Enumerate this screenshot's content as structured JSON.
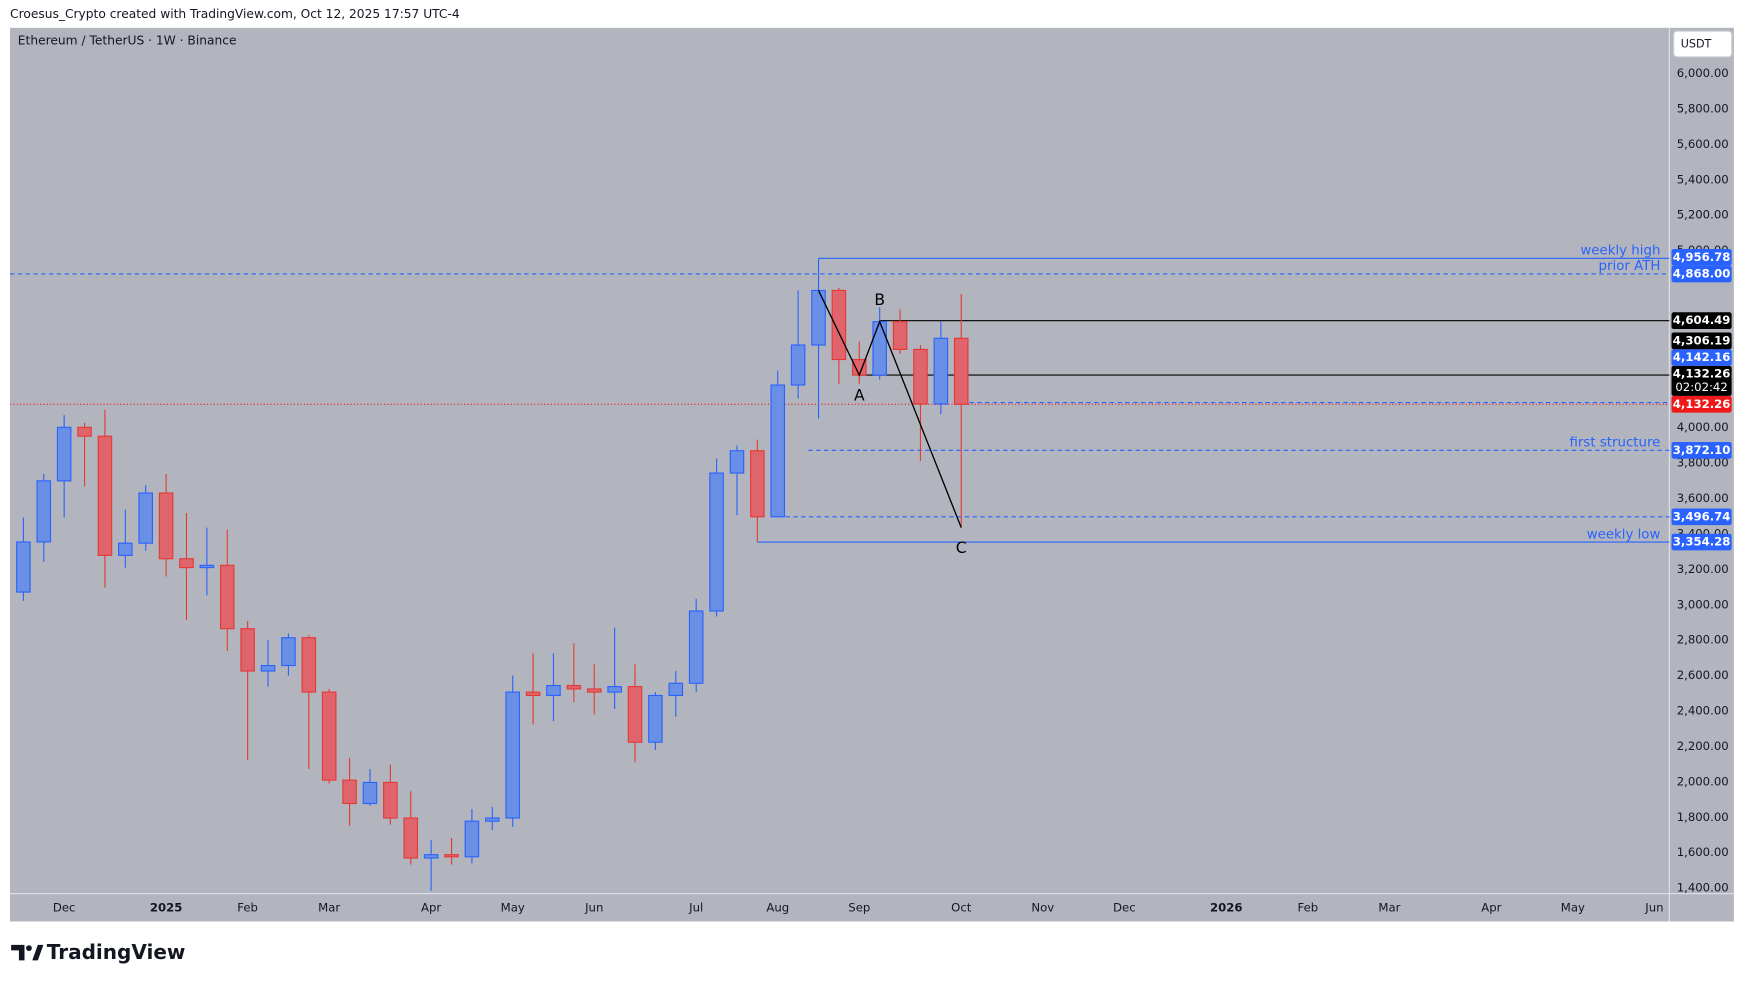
{
  "chart_data": {
    "type": "candlestick",
    "attribution": "Croesus_Crypto created with TradingView.com, Oct 12, 2025 17:57 UTC-4",
    "title": "Ethereum / TetherUS · 1W · Binance",
    "currency": "USDT",
    "brand": "TradingView",
    "up_color": "#2962ff",
    "down_color": "#e53935",
    "up_fill": "#6a8fe6",
    "down_fill": "#e0646c",
    "open": [
      3072,
      3355,
      3700,
      4002,
      3952,
      3279,
      3348,
      3631,
      3260,
      3210,
      3223,
      2865,
      2626,
      2657,
      2814,
      2507,
      2010,
      1878,
      1997,
      1796,
      1570,
      1589,
      1577,
      1778,
      1796,
      2507,
      2488,
      2544,
      2525,
      2507,
      2538,
      2224,
      2488,
      2557,
      2965,
      3744,
      3870,
      3497,
      4241,
      4467,
      4775,
      4385,
      4297,
      4599,
      4442,
      4134,
      4505
    ],
    "high": [
      3493,
      3738,
      4071,
      4027,
      4102,
      3537,
      3675,
      3738,
      3518,
      3436,
      3424,
      2909,
      2802,
      2839,
      2827,
      2525,
      2136,
      2073,
      2098,
      1947,
      1671,
      1683,
      1847,
      1859,
      2601,
      2726,
      2726,
      2783,
      2664,
      2871,
      2664,
      2507,
      2626,
      3034,
      3826,
      3900,
      3933,
      4322,
      4775,
      4956.78,
      4790,
      4486,
      4680,
      4668,
      4467,
      4599,
      4756
    ],
    "low": [
      3022,
      3242,
      3493,
      3669,
      3097,
      3210,
      3305,
      3160,
      2915,
      3053,
      2739,
      2123,
      2538,
      2600,
      2073,
      1991,
      1752,
      1865,
      1759,
      1533,
      1385,
      1533,
      1540,
      1727,
      1746,
      2324,
      2343,
      2450,
      2381,
      2412,
      2111,
      2180,
      2368,
      2507,
      2934,
      3506,
      3354.28,
      3497,
      4165,
      4052,
      4247,
      4247,
      4272,
      4417,
      3813,
      4077,
      3436
    ],
    "close": [
      3355,
      3700,
      4002,
      3952,
      3279,
      3348,
      3631,
      3260,
      3210,
      3223,
      2865,
      2626,
      2657,
      2814,
      2507,
      2010,
      1878,
      1997,
      1796,
      1570,
      1589,
      1577,
      1778,
      1796,
      2507,
      2488,
      2544,
      2525,
      2507,
      2538,
      2224,
      2488,
      2557,
      2965,
      3744,
      3870,
      3497,
      4241,
      4467,
      4775,
      4385,
      4297,
      4599,
      4442,
      4134,
      4505,
      4132.26
    ],
    "xlim": [
      -0.655,
      80.73
    ],
    "xticks": [
      {
        "value": 2,
        "label": "Dec"
      },
      {
        "value": 7,
        "label": "2025"
      },
      {
        "value": 11,
        "label": "Feb"
      },
      {
        "value": 15,
        "label": "Mar"
      },
      {
        "value": 20,
        "label": "Apr"
      },
      {
        "value": 24,
        "label": "May"
      },
      {
        "value": 28,
        "label": "Jun"
      },
      {
        "value": 33,
        "label": "Jul"
      },
      {
        "value": 37,
        "label": "Aug"
      },
      {
        "value": 41,
        "label": "Sep"
      },
      {
        "value": 46,
        "label": "Oct"
      },
      {
        "value": 50,
        "label": "Nov"
      },
      {
        "value": 54,
        "label": "Dec"
      },
      {
        "value": 59,
        "label": "2026"
      },
      {
        "value": 63,
        "label": "Feb"
      },
      {
        "value": 67,
        "label": "Mar"
      },
      {
        "value": 72,
        "label": "Apr"
      },
      {
        "value": 76,
        "label": "May"
      },
      {
        "value": 80,
        "label": "Jun"
      }
    ],
    "ylim": [
      1369,
      6258
    ],
    "yticks": [
      {
        "value": 6000,
        "label": "6,000.00"
      },
      {
        "value": 5800,
        "label": "5,800.00"
      },
      {
        "value": 5600,
        "label": "5,600.00"
      },
      {
        "value": 5400,
        "label": "5,400.00"
      },
      {
        "value": 5200,
        "label": "5,200.00"
      },
      {
        "value": 5000,
        "label": "5,000.00"
      },
      {
        "value": 4000,
        "label": "4,000.00"
      },
      {
        "value": 3800,
        "label": "3,800.00"
      },
      {
        "value": 3600,
        "label": "3,600.00"
      },
      {
        "value": 3400,
        "label": "3,400.00"
      },
      {
        "value": 3200,
        "label": "3,200.00"
      },
      {
        "value": 3000,
        "label": "3,000.00"
      },
      {
        "value": 2800,
        "label": "2,800.00"
      },
      {
        "value": 2600,
        "label": "2,600.00"
      },
      {
        "value": 2400,
        "label": "2,400.00"
      },
      {
        "value": 2200,
        "label": "2,200.00"
      },
      {
        "value": 2000,
        "label": "2,000.00"
      },
      {
        "value": 1800,
        "label": "1,800.00"
      },
      {
        "value": 1600,
        "label": "1,600.00"
      },
      {
        "value": 1400,
        "label": "1,400.00"
      }
    ],
    "grid": false,
    "levels": [
      {
        "name": "weekly high",
        "value": 4956.78,
        "label": "4,956.78",
        "color": "#2962ff",
        "line": {
          "from": 39,
          "style": "solid"
        }
      },
      {
        "name": "prior ATH",
        "value": 4868,
        "label": "4,868.00",
        "color": "#2962ff",
        "line": {
          "style": "dashed"
        }
      },
      {
        "value": 4604.49,
        "label": "4,604.49",
        "color": "#000000",
        "line": {
          "from": 42,
          "style": "solid"
        }
      },
      {
        "value": 4306.19,
        "label": "4,306.19",
        "color": "#000000"
      },
      {
        "value": 4297,
        "color": "#000000",
        "line": {
          "from": 41,
          "style": "solid"
        }
      },
      {
        "value": 4142.16,
        "label": "4,142.16",
        "color": "#2962ff",
        "line": {
          "from": 46.4,
          "style": "dashed"
        }
      },
      {
        "value": 4132.26,
        "label": "4,132.26",
        "countdown": "02:02:42",
        "color": "#000000"
      },
      {
        "value": 4132.26,
        "label": "4,132.26",
        "color": "#f01818",
        "line": {
          "style": "dotted"
        }
      },
      {
        "name": "first structure",
        "value": 3872.1,
        "label": "3,872.10",
        "color": "#2962ff",
        "line": {
          "from": 38.5,
          "style": "dashed"
        }
      },
      {
        "value": 3496.74,
        "label": "3,496.74",
        "color": "#2962ff",
        "line": {
          "from": 37,
          "style": "dashed"
        }
      },
      {
        "name": "weekly low",
        "value": 3354.28,
        "label": "3,354.28",
        "color": "#2962ff",
        "line": {
          "from": 36,
          "style": "solid"
        }
      }
    ],
    "pattern": {
      "color": "#000000",
      "points": [
        {
          "x": 39,
          "y": 4775
        },
        {
          "x": 41,
          "y": 4297,
          "label": "A"
        },
        {
          "x": 42,
          "y": 4599,
          "label": "B"
        },
        {
          "x": 46,
          "y": 3436,
          "label": "C"
        }
      ]
    }
  }
}
